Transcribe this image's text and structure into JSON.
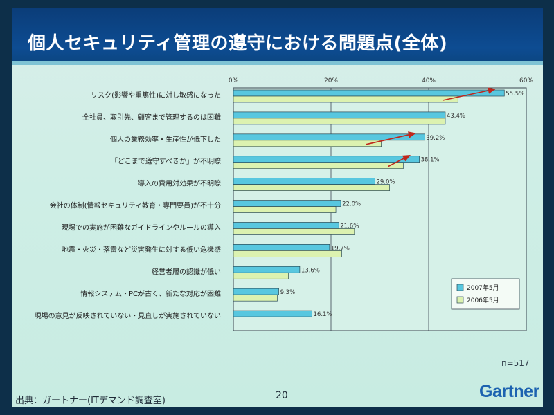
{
  "slide": {
    "title": "個人セキュリティ管理の遵守における問題点(全体)",
    "source": "出典：ガートナー(ITデマンド調査室)",
    "page_number": "20",
    "sample_size": "n=517",
    "logo_text": "Gartner"
  },
  "colors": {
    "title_bar": "#0b3d79",
    "slide_bg": "#cfeee6",
    "series_2007": "#58c7df",
    "series_2006": "#dcf2b0",
    "arrow": "#c0271c",
    "logo": "#1c62b0"
  },
  "chart_data": {
    "type": "bar",
    "orientation": "horizontal",
    "xlim": [
      0,
      60
    ],
    "xticks": [
      "0%",
      "20%",
      "40%",
      "60%"
    ],
    "categories": [
      "リスク(影響や重篤性)に対し敏感になった",
      "全社員、取引先、顧客まで管理するのは困難",
      "個人の業務効率・生産性が低下した",
      "「どこまで遵守すべきか」が不明瞭",
      "導入の費用対効果が不明瞭",
      "会社の体制(情報セキュリティ教育・専門要員)が不十分",
      "現場での実施が困難なガイドラインやルールの導入",
      "地震・火災・落雷など災害発生に対する低い危機感",
      "経営者層の認識が低い",
      "情報システム・PCが古く、新たな対応が困難",
      "現場の意見が反映されていない・見直しが実施されていない"
    ],
    "series": [
      {
        "name": "2007年5月",
        "values": [
          55.5,
          43.4,
          39.2,
          38.1,
          29.0,
          22.0,
          21.6,
          19.7,
          13.6,
          9.3,
          16.1
        ],
        "labels": [
          "55.5%",
          "43.4%",
          "39.2%",
          "38.1%",
          "29.0%",
          "22.0%",
          "21.6%",
          "19.7%",
          "13.6%",
          "9.3%",
          "16.1%"
        ]
      },
      {
        "name": "2006年5月",
        "values": [
          46.0,
          43.4,
          30.3,
          34.8,
          32.0,
          21.0,
          24.8,
          22.2,
          11.3,
          9.0,
          null
        ]
      }
    ],
    "legend_position": "bottom-right",
    "grid": true,
    "annotation_arrows_on_categories": [
      0,
      2,
      3
    ]
  }
}
